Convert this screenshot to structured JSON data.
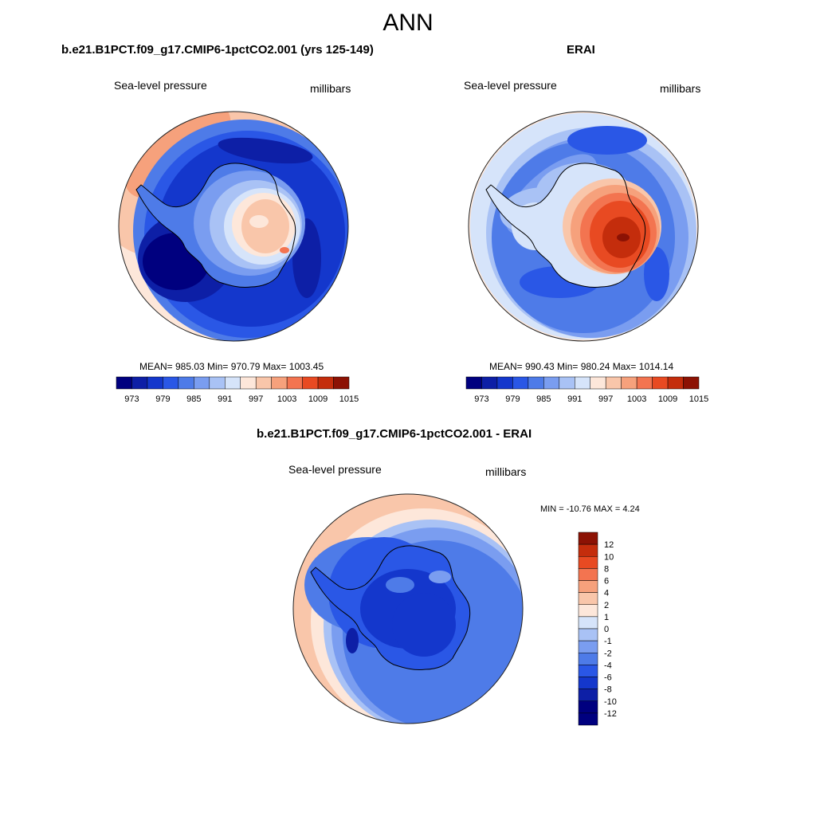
{
  "figure": {
    "title": "ANN"
  },
  "palette": {
    "diverging": [
      "#00007f",
      "#0d1fa6",
      "#1437cc",
      "#2a57e6",
      "#4e7be8",
      "#7a9df0",
      "#a9c2f5",
      "#d6e4fa",
      "#fde7da",
      "#f9c6aa",
      "#f6a17c",
      "#f37450",
      "#e84a22",
      "#c42d0c",
      "#8c1204"
    ],
    "coast": "#000000",
    "outline": "#222222"
  },
  "chart_data": [
    {
      "type": "heatmap",
      "projection": "south-polar-stereographic",
      "title": "b.e21.B1PCT.f09_g17.CMIP6-1pctCO2.001 (yrs 125-149)",
      "variable_label": "Sea-level pressure",
      "units_label": "millibars",
      "stats_text": "MEAN= 985.03  Min= 970.79  Max= 1003.45",
      "mean": 985.03,
      "min": 970.79,
      "max": 1003.45,
      "colorbar": {
        "orientation": "horizontal",
        "tick_labels": [
          "973",
          "979",
          "985",
          "991",
          "997",
          "1003",
          "1009",
          "1015"
        ],
        "levels": [
          970,
          973,
          976,
          979,
          982,
          985,
          988,
          991,
          994,
          997,
          1000,
          1003,
          1006,
          1009,
          1012,
          1015
        ]
      }
    },
    {
      "type": "heatmap",
      "projection": "south-polar-stereographic",
      "title": "ERAI",
      "variable_label": "Sea-level pressure",
      "units_label": "millibars",
      "stats_text": "MEAN= 990.43  Min= 980.24  Max= 1014.14",
      "mean": 990.43,
      "min": 980.24,
      "max": 1014.14,
      "colorbar": {
        "orientation": "horizontal",
        "tick_labels": [
          "973",
          "979",
          "985",
          "991",
          "997",
          "1003",
          "1009",
          "1015"
        ],
        "levels": [
          970,
          973,
          976,
          979,
          982,
          985,
          988,
          991,
          994,
          997,
          1000,
          1003,
          1006,
          1009,
          1012,
          1015
        ]
      }
    },
    {
      "type": "heatmap",
      "projection": "south-polar-stereographic",
      "title": "b.e21.B1PCT.f09_g17.CMIP6-1pctCO2.001 - ERAI",
      "variable_label": "Sea-level pressure",
      "units_label": "millibars",
      "stats_text": "MIN = -10.76 MAX =   4.24",
      "min": -10.76,
      "max": 4.24,
      "colorbar": {
        "orientation": "vertical",
        "tick_labels": [
          "12",
          "10",
          "8",
          "6",
          "4",
          "2",
          "1",
          "0",
          "-1",
          "-2",
          "-4",
          "-6",
          "-8",
          "-10",
          "-12"
        ]
      }
    }
  ]
}
